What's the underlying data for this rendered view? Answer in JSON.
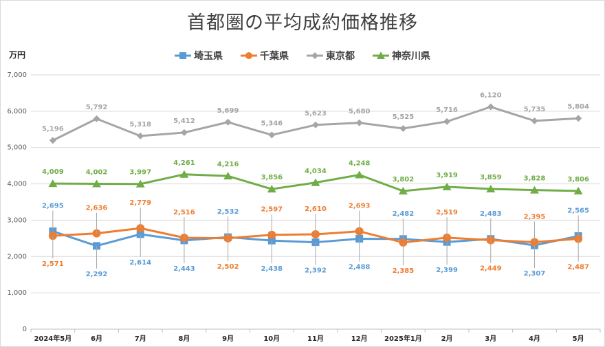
{
  "chart_data": {
    "type": "line",
    "title": "首都圏の平均成約価格推移",
    "ylabel": "万円",
    "xlabel": "",
    "ylim": [
      0,
      7000
    ],
    "yticks": [
      0,
      1000,
      2000,
      3000,
      4000,
      5000,
      6000,
      7000
    ],
    "ytick_labels": [
      "0",
      "1,000",
      "2,000",
      "3,000",
      "4,000",
      "5,000",
      "6,000",
      "7,000"
    ],
    "grid": true,
    "legend_position": "top",
    "categories": [
      "2024年5月",
      "6月",
      "7月",
      "8月",
      "9月",
      "10月",
      "11月",
      "12月",
      "2025年1月",
      "2月",
      "3月",
      "4月",
      "5月"
    ],
    "series": [
      {
        "name": "埼玉県",
        "color": "#5b9bd5",
        "marker": "square",
        "values": [
          2695,
          2292,
          2614,
          2443,
          2532,
          2438,
          2392,
          2488,
          2482,
          2399,
          2483,
          2307,
          2565
        ],
        "labels": [
          "2,695",
          "2,292",
          "2,614",
          "2,443",
          "2,532",
          "2,438",
          "2,392",
          "2,488",
          "2,482",
          "2,399",
          "2,483",
          "2,307",
          "2,565"
        ]
      },
      {
        "name": "千葉県",
        "color": "#ed7d31",
        "marker": "circle",
        "values": [
          2571,
          2636,
          2779,
          2516,
          2502,
          2597,
          2610,
          2693,
          2385,
          2519,
          2449,
          2395,
          2487
        ],
        "labels": [
          "2,571",
          "2,636",
          "2,779",
          "2,516",
          "2,502",
          "2,597",
          "2,610",
          "2,693",
          "2,385",
          "2,519",
          "2,449",
          "2,395",
          "2,487"
        ]
      },
      {
        "name": "東京都",
        "color": "#a5a5a5",
        "marker": "diamond",
        "values": [
          5196,
          5792,
          5318,
          5412,
          5699,
          5346,
          5623,
          5680,
          5525,
          5716,
          6120,
          5735,
          5804
        ],
        "labels": [
          "5,196",
          "5,792",
          "5,318",
          "5,412",
          "5,699",
          "5,346",
          "5,623",
          "5,680",
          "5,525",
          "5,716",
          "6,120",
          "5,735",
          "5,804"
        ]
      },
      {
        "name": "神奈川県",
        "color": "#70ad47",
        "marker": "triangle",
        "values": [
          4009,
          4002,
          3997,
          4261,
          4216,
          3856,
          4034,
          4248,
          3802,
          3919,
          3859,
          3828,
          3806
        ],
        "labels": [
          "4,009",
          "4,002",
          "3,997",
          "4,261",
          "4,216",
          "3,856",
          "4,034",
          "4,248",
          "3,802",
          "3,919",
          "3,859",
          "3,828",
          "3,806"
        ]
      }
    ]
  }
}
